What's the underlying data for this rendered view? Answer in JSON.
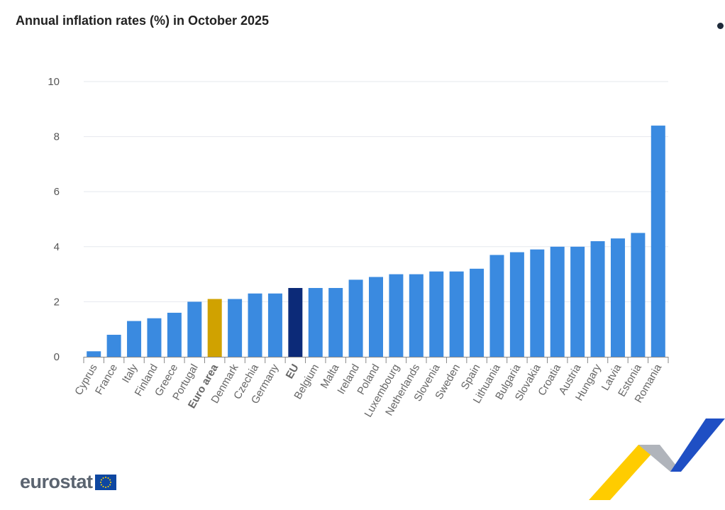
{
  "title": "Annual inflation rates (%) in October 2025",
  "menu_icon": "context-menu-icon",
  "logo": "eurostat",
  "chart_data": {
    "type": "bar",
    "title": "Annual inflation rates (%) in October 2025",
    "xlabel": "",
    "ylabel": "",
    "ylim": [
      0,
      10
    ],
    "yticks": [
      0,
      2,
      4,
      6,
      8,
      10
    ],
    "grid": true,
    "categories": [
      "Cyprus",
      "France",
      "Italy",
      "Finland",
      "Greece",
      "Portugal",
      "Euro area",
      "Denmark",
      "Czechia",
      "Germany",
      "EU",
      "Belgium",
      "Malta",
      "Ireland",
      "Poland",
      "Luxembourg",
      "Netherlands",
      "Slovenia",
      "Sweden",
      "Spain",
      "Lithuania",
      "Bulgaria",
      "Slovakia",
      "Croatia",
      "Austria",
      "Hungary",
      "Latvia",
      "Estonia",
      "Romania"
    ],
    "values": [
      0.2,
      0.8,
      1.3,
      1.4,
      1.6,
      2.0,
      2.1,
      2.1,
      2.3,
      2.3,
      2.5,
      2.5,
      2.5,
      2.8,
      2.9,
      3.0,
      3.0,
      3.1,
      3.1,
      3.2,
      3.7,
      3.8,
      3.9,
      4.0,
      4.0,
      4.2,
      4.3,
      4.5,
      8.4
    ],
    "colors": {
      "default": "#3a8ae0",
      "Euro area": "#d0a200",
      "EU": "#0c2a78"
    },
    "bold_categories": [
      "Euro area",
      "EU"
    ]
  }
}
